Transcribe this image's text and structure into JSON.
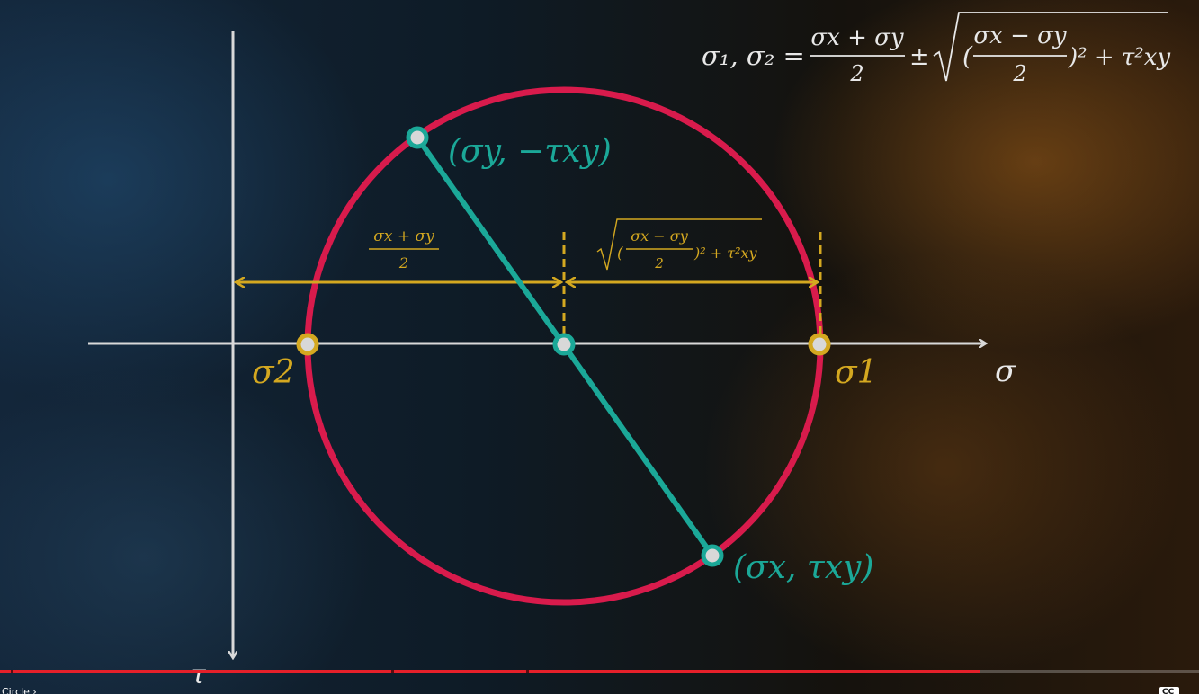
{
  "formula": {
    "lhs": "σ₁, σ₂ =",
    "frac1_num": "σx + σy",
    "frac1_den": "2",
    "pm": "±",
    "sqrt_open": "(",
    "frac2_num": "σx − σy",
    "frac2_den": "2",
    "tail": ")² + τ²xy"
  },
  "annotations": {
    "center_num": "σx + σy",
    "center_den": "2",
    "radius_open": "(",
    "radius_num": "σx − σy",
    "radius_den": "2",
    "radius_tail": ")² + τ²xy"
  },
  "labels": {
    "top_point": "(σy, −τxy)",
    "bottom_point": "(σx, τxy)",
    "sigma2": "σ2",
    "sigma1": "σ1",
    "sigma_axis": "σ",
    "tau_axis": "τ"
  },
  "player": {
    "progress_fraction": 0.817,
    "chapter_label": "Circle ›"
  },
  "colors": {
    "circle": "#d81b4c",
    "diameter": "#1ba898",
    "dimension": "#d4a820",
    "axis": "#d9d9d9",
    "progress": "#e5202a"
  }
}
